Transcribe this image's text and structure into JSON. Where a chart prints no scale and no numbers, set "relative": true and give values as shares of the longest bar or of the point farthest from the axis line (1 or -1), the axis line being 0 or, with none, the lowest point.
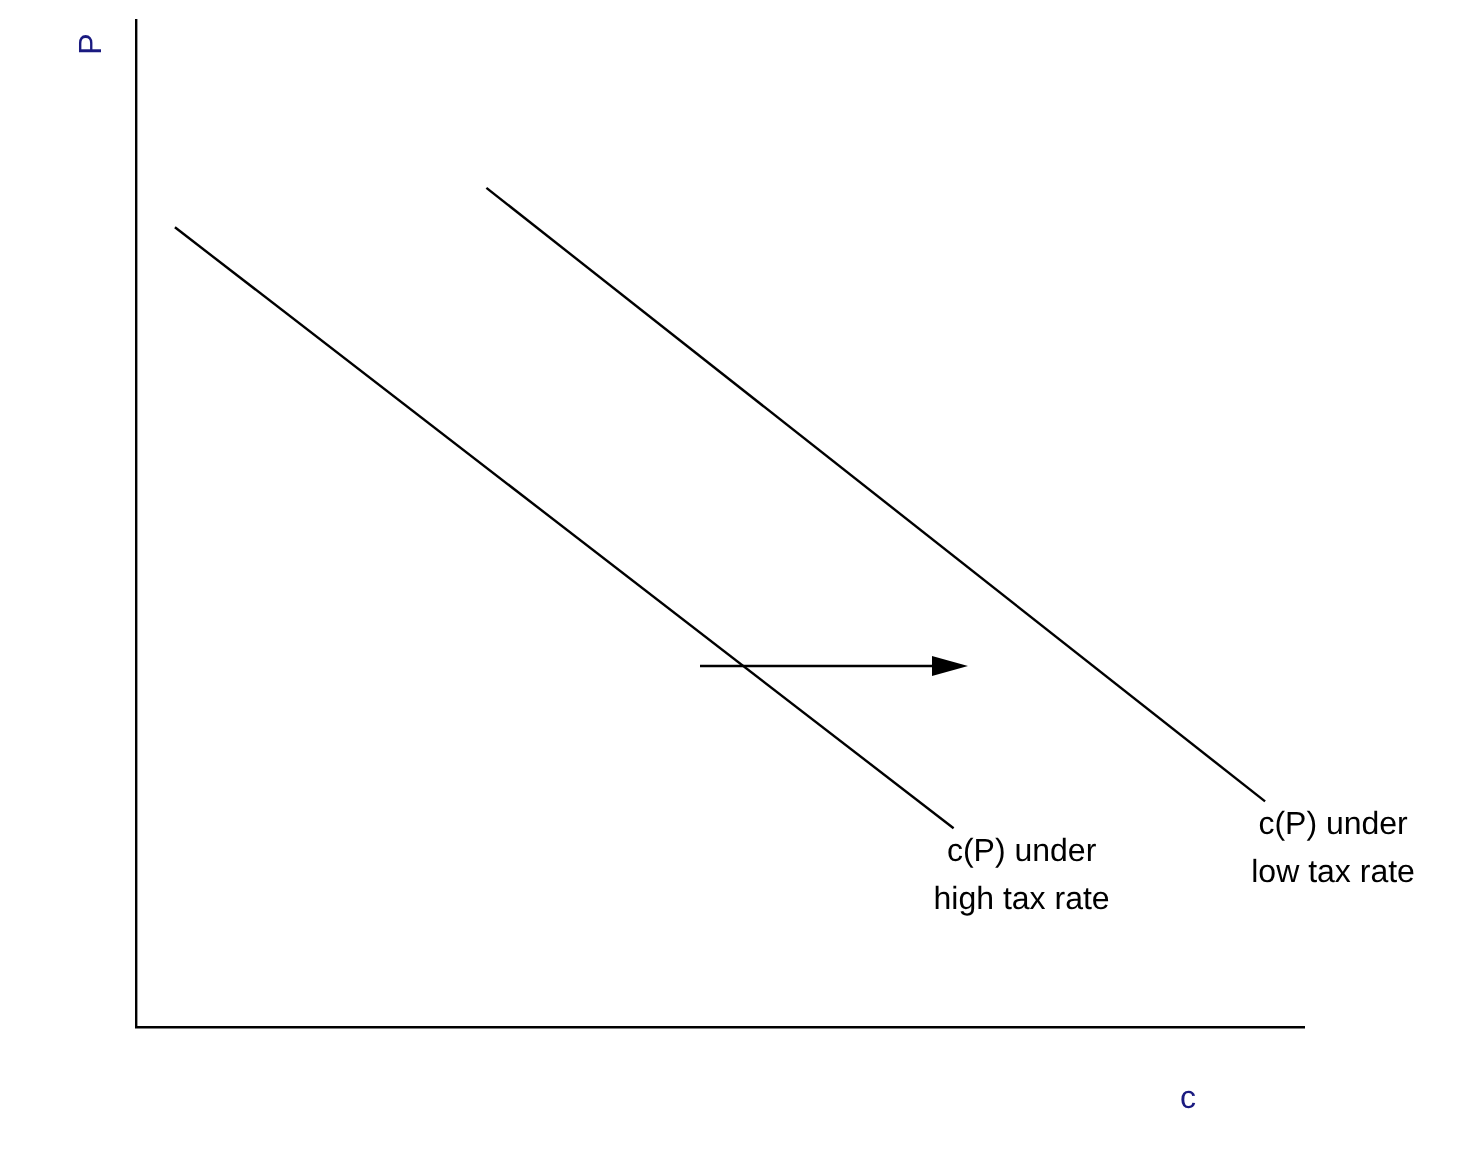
{
  "chart_data": {
    "type": "line",
    "relative": true,
    "xlabel": "c",
    "ylabel": "P",
    "line_style": "solid",
    "categories": [
      null,
      null,
      null,
      null,
      null,
      null,
      null,
      null,
      null,
      null,
      null,
      null,
      null,
      null,
      null
    ],
    "series": [
      {
        "name": "c(P) under high tax rate",
        "color": "#000000",
        "values": [
          0.953,
          null,
          null,
          null,
          null,
          null,
          null,
          null,
          null,
          null,
          0.237,
          null,
          null,
          null,
          null
        ]
      },
      {
        "name": "c(P) under low tax rate",
        "color": "#000000",
        "values": [
          null,
          null,
          null,
          null,
          1,
          null,
          null,
          null,
          null,
          null,
          null,
          null,
          null,
          null,
          0.269
        ]
      }
    ]
  }
}
